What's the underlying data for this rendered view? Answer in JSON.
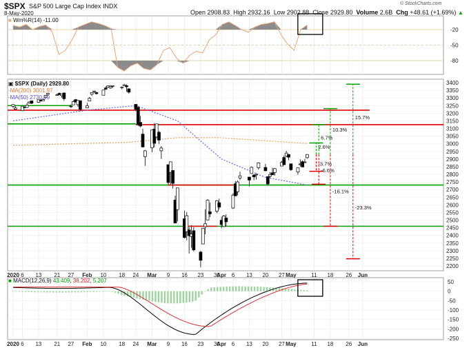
{
  "header": {
    "symbol": "$SPX",
    "name": "S&P 500 Large Cap Index",
    "exchange": "INDX",
    "date": "8-May-2020",
    "open_label": "Open",
    "open": "2908.83",
    "high_label": "High",
    "high": "2932.16",
    "low_label": "Low",
    "low": "2902.88",
    "close_label": "Close",
    "close": "2929.80",
    "volume_label": "Volume",
    "volume": "2.6B",
    "chg_label": "Chg",
    "chg": "+48.61 (+1.69%)",
    "chg_icon": "up-triangle-icon"
  },
  "watermark": "© StockCharts.com",
  "wmr_panel": {
    "legend": "Wm%R(14) -11.00",
    "axis": [
      "-20",
      "-50",
      "-80"
    ]
  },
  "price_panel": {
    "legend_symbol": "$SPX (Daily) 2929.80",
    "legend_ma200": "-MA(200) 3001.97",
    "legend_ma50": "-MA(50) 2730.19",
    "y_ticks": [
      "3400",
      "3350",
      "3300",
      "3250",
      "3200",
      "3150",
      "3100",
      "3050",
      "3000",
      "2950",
      "2900",
      "2850",
      "2800",
      "2750",
      "2700",
      "2650",
      "2600",
      "2550",
      "2500",
      "2450",
      "2400",
      "2350",
      "2300",
      "2250",
      "2200"
    ],
    "annotations": [
      "15.7%",
      "10.3%",
      "6.7%",
      "2.6%",
      "-3.7%",
      "-6.6%",
      "-16.1%",
      "-23.3%"
    ]
  },
  "macd_panel": {
    "legend_name": "MACD(12,26,9)",
    "legend_macd": "43.409",
    "legend_signal": "38.202",
    "legend_hist": "5.207",
    "y_ticks": [
      "50",
      "0",
      "-50",
      "-100",
      "-150",
      "-200",
      "-250"
    ]
  },
  "x_axis": {
    "labels": [
      "2020",
      "6",
      "13",
      "21",
      "27",
      "Feb",
      "10",
      "18",
      "24",
      "Mar",
      "9",
      "16",
      "23",
      "30",
      "Apr",
      "6",
      "13",
      "20",
      "27",
      "May",
      "11",
      "18",
      "26",
      "Jun"
    ]
  },
  "colors": {
    "up_candle": "#ffffff",
    "down_candle": "#000000",
    "support_green": "#00a000",
    "resistance_red": "#e00000",
    "ma200": "#f4a460",
    "ma50": "#7b68ee",
    "wmr_line": "#e8a878",
    "macd_line": "#000000",
    "signal_line": "#e03030",
    "histogram": "#9ed39e",
    "highlight_box": "#000000"
  },
  "chart_data": {
    "type": "candlestick",
    "title": "$SPX S&P 500 Large Cap Index INDX",
    "ylabel": "",
    "ylim": [
      2200,
      3400
    ],
    "grid": true,
    "candles": [
      {
        "d": "2020-01-02",
        "o": 3245,
        "h": 3258,
        "l": 3235,
        "c": 3257
      },
      {
        "d": "2020-01-03",
        "o": 3226,
        "h": 3246,
        "l": 3222,
        "c": 3234
      },
      {
        "d": "2020-01-06",
        "o": 3217,
        "h": 3246,
        "l": 3214,
        "c": 3246
      },
      {
        "d": "2020-01-07",
        "o": 3241,
        "h": 3245,
        "l": 3232,
        "c": 3237
      },
      {
        "d": "2020-01-08",
        "o": 3238,
        "h": 3268,
        "l": 3235,
        "c": 3253
      },
      {
        "d": "2020-01-09",
        "o": 3266,
        "h": 3276,
        "l": 3263,
        "c": 3274
      },
      {
        "d": "2020-01-10",
        "o": 3281,
        "h": 3282,
        "l": 3260,
        "c": 3265
      },
      {
        "d": "2020-01-13",
        "o": 3271,
        "h": 3288,
        "l": 3268,
        "c": 3288
      },
      {
        "d": "2020-01-14",
        "o": 3285,
        "h": 3294,
        "l": 3277,
        "c": 3283
      },
      {
        "d": "2020-01-15",
        "o": 3282,
        "h": 3298,
        "l": 3280,
        "c": 3289
      },
      {
        "d": "2020-01-16",
        "o": 3302,
        "h": 3317,
        "l": 3301,
        "c": 3317
      },
      {
        "d": "2020-01-17",
        "o": 3323,
        "h": 3330,
        "l": 3318,
        "c": 3330
      },
      {
        "d": "2020-01-21",
        "o": 3321,
        "h": 3329,
        "l": 3316,
        "c": 3321
      },
      {
        "d": "2020-01-22",
        "o": 3330,
        "h": 3337,
        "l": 3320,
        "c": 3321
      },
      {
        "d": "2020-01-23",
        "o": 3315,
        "h": 3326,
        "l": 3302,
        "c": 3326
      },
      {
        "d": "2020-01-24",
        "o": 3333,
        "h": 3334,
        "l": 3281,
        "c": 3295
      },
      {
        "d": "2020-01-27",
        "o": 3247,
        "h": 3258,
        "l": 3234,
        "c": 3243
      },
      {
        "d": "2020-01-28",
        "o": 3255,
        "h": 3285,
        "l": 3253,
        "c": 3276
      },
      {
        "d": "2020-01-29",
        "o": 3289,
        "h": 3293,
        "l": 3271,
        "c": 3273
      },
      {
        "d": "2020-01-30",
        "o": 3256,
        "h": 3285,
        "l": 3242,
        "c": 3284
      },
      {
        "d": "2020-01-31",
        "o": 3282,
        "h": 3282,
        "l": 3214,
        "c": 3226
      },
      {
        "d": "2020-02-03",
        "o": 3235,
        "h": 3268,
        "l": 3235,
        "c": 3249
      },
      {
        "d": "2020-02-04",
        "o": 3280,
        "h": 3306,
        "l": 3280,
        "c": 3298
      },
      {
        "d": "2020-02-05",
        "o": 3324,
        "h": 3337,
        "l": 3313,
        "c": 3335
      },
      {
        "d": "2020-02-06",
        "o": 3344,
        "h": 3347,
        "l": 3334,
        "c": 3345
      },
      {
        "d": "2020-02-07",
        "o": 3335,
        "h": 3341,
        "l": 3322,
        "c": 3328
      },
      {
        "d": "2020-02-10",
        "o": 3318,
        "h": 3352,
        "l": 3318,
        "c": 3352
      },
      {
        "d": "2020-02-11",
        "o": 3365,
        "h": 3375,
        "l": 3352,
        "c": 3358
      },
      {
        "d": "2020-02-12",
        "o": 3370,
        "h": 3381,
        "l": 3369,
        "c": 3379
      },
      {
        "d": "2020-02-13",
        "o": 3365,
        "h": 3385,
        "l": 3360,
        "c": 3374
      },
      {
        "d": "2020-02-14",
        "o": 3378,
        "h": 3380,
        "l": 3366,
        "c": 3380
      },
      {
        "d": "2020-02-18",
        "o": 3369,
        "h": 3375,
        "l": 3356,
        "c": 3370
      },
      {
        "d": "2020-02-19",
        "o": 3380,
        "h": 3393,
        "l": 3379,
        "c": 3386
      },
      {
        "d": "2020-02-20",
        "o": 3380,
        "h": 3389,
        "l": 3341,
        "c": 3373
      },
      {
        "d": "2020-02-21",
        "o": 3360,
        "h": 3360,
        "l": 3328,
        "c": 3338
      },
      {
        "d": "2020-02-24",
        "o": 3258,
        "h": 3259,
        "l": 3214,
        "c": 3226
      },
      {
        "d": "2020-02-25",
        "o": 3238,
        "h": 3247,
        "l": 3118,
        "c": 3128
      },
      {
        "d": "2020-02-26",
        "o": 3140,
        "h": 3182,
        "l": 3108,
        "c": 3116
      },
      {
        "d": "2020-02-27",
        "o": 3063,
        "h": 3098,
        "l": 2977,
        "c": 2979
      },
      {
        "d": "2020-02-28",
        "o": 2916,
        "h": 2959,
        "l": 2855,
        "c": 2954
      },
      {
        "d": "2020-03-02",
        "o": 2974,
        "h": 3090,
        "l": 2945,
        "c": 3090
      },
      {
        "d": "2020-03-03",
        "o": 3096,
        "h": 3136,
        "l": 2976,
        "c": 3003
      },
      {
        "d": "2020-03-04",
        "o": 3045,
        "h": 3130,
        "l": 3034,
        "c": 3130
      },
      {
        "d": "2020-03-05",
        "o": 3075,
        "h": 3083,
        "l": 2999,
        "c": 3024
      },
      {
        "d": "2020-03-06",
        "o": 2954,
        "h": 2985,
        "l": 2901,
        "c": 2972
      },
      {
        "d": "2020-03-09",
        "o": 2863,
        "h": 2863,
        "l": 2734,
        "c": 2746
      },
      {
        "d": "2020-03-10",
        "o": 2813,
        "h": 2882,
        "l": 2734,
        "c": 2882
      },
      {
        "d": "2020-03-11",
        "o": 2825,
        "h": 2825,
        "l": 2707,
        "c": 2741
      },
      {
        "d": "2020-03-12",
        "o": 2631,
        "h": 2660,
        "l": 2478,
        "c": 2481
      },
      {
        "d": "2020-03-13",
        "o": 2569,
        "h": 2711,
        "l": 2492,
        "c": 2711
      },
      {
        "d": "2020-03-16",
        "o": 2509,
        "h": 2562,
        "l": 2380,
        "c": 2386
      },
      {
        "d": "2020-03-17",
        "o": 2425,
        "h": 2553,
        "l": 2367,
        "c": 2529
      },
      {
        "d": "2020-03-18",
        "o": 2436,
        "h": 2453,
        "l": 2281,
        "c": 2398
      },
      {
        "d": "2020-03-19",
        "o": 2393,
        "h": 2466,
        "l": 2319,
        "c": 2409
      },
      {
        "d": "2020-03-20",
        "o": 2431,
        "h": 2453,
        "l": 2295,
        "c": 2305
      },
      {
        "d": "2020-03-23",
        "o": 2291,
        "h": 2300,
        "l": 2192,
        "c": 2237
      },
      {
        "d": "2020-03-24",
        "o": 2344,
        "h": 2449,
        "l": 2344,
        "c": 2447
      },
      {
        "d": "2020-03-25",
        "o": 2457,
        "h": 2571,
        "l": 2407,
        "c": 2476
      },
      {
        "d": "2020-03-26",
        "o": 2501,
        "h": 2637,
        "l": 2500,
        "c": 2630
      },
      {
        "d": "2020-03-27",
        "o": 2555,
        "h": 2615,
        "l": 2520,
        "c": 2541
      },
      {
        "d": "2020-03-30",
        "o": 2558,
        "h": 2631,
        "l": 2545,
        "c": 2627
      },
      {
        "d": "2020-03-31",
        "o": 2614,
        "h": 2641,
        "l": 2571,
        "c": 2585
      },
      {
        "d": "2020-04-01",
        "o": 2499,
        "h": 2522,
        "l": 2447,
        "c": 2471
      },
      {
        "d": "2020-04-02",
        "o": 2458,
        "h": 2533,
        "l": 2455,
        "c": 2527
      },
      {
        "d": "2020-04-03",
        "o": 2514,
        "h": 2538,
        "l": 2459,
        "c": 2489
      },
      {
        "d": "2020-04-06",
        "o": 2579,
        "h": 2676,
        "l": 2574,
        "c": 2664
      },
      {
        "d": "2020-04-07",
        "o": 2738,
        "h": 2756,
        "l": 2657,
        "c": 2659
      },
      {
        "d": "2020-04-08",
        "o": 2686,
        "h": 2760,
        "l": 2663,
        "c": 2750
      },
      {
        "d": "2020-04-09",
        "o": 2776,
        "h": 2818,
        "l": 2762,
        "c": 2790
      },
      {
        "d": "2020-04-13",
        "o": 2782,
        "h": 2782,
        "l": 2721,
        "c": 2762
      },
      {
        "d": "2020-04-14",
        "o": 2805,
        "h": 2851,
        "l": 2805,
        "c": 2846
      },
      {
        "d": "2020-04-15",
        "o": 2795,
        "h": 2801,
        "l": 2761,
        "c": 2783
      },
      {
        "d": "2020-04-16",
        "o": 2799,
        "h": 2806,
        "l": 2765,
        "c": 2800
      },
      {
        "d": "2020-04-17",
        "o": 2843,
        "h": 2879,
        "l": 2830,
        "c": 2875
      },
      {
        "d": "2020-04-20",
        "o": 2845,
        "h": 2868,
        "l": 2821,
        "c": 2823
      },
      {
        "d": "2020-04-21",
        "o": 2785,
        "h": 2785,
        "l": 2727,
        "c": 2737
      },
      {
        "d": "2020-04-22",
        "o": 2787,
        "h": 2815,
        "l": 2775,
        "c": 2799
      },
      {
        "d": "2020-04-23",
        "o": 2810,
        "h": 2844,
        "l": 2794,
        "c": 2797
      },
      {
        "d": "2020-04-24",
        "o": 2812,
        "h": 2842,
        "l": 2791,
        "c": 2837
      },
      {
        "d": "2020-04-27",
        "o": 2854,
        "h": 2888,
        "l": 2852,
        "c": 2878
      },
      {
        "d": "2020-04-28",
        "o": 2910,
        "h": 2922,
        "l": 2860,
        "c": 2863
      },
      {
        "d": "2020-04-29",
        "o": 2918,
        "h": 2954,
        "l": 2913,
        "c": 2939
      },
      {
        "d": "2020-04-30",
        "o": 2930,
        "h": 2930,
        "l": 2892,
        "c": 2912
      },
      {
        "d": "2020-05-01",
        "o": 2869,
        "h": 2869,
        "l": 2822,
        "c": 2830
      },
      {
        "d": "2020-05-04",
        "o": 2815,
        "h": 2844,
        "l": 2797,
        "c": 2842
      },
      {
        "d": "2020-05-05",
        "o": 2868,
        "h": 2898,
        "l": 2852,
        "c": 2868
      },
      {
        "d": "2020-05-06",
        "o": 2883,
        "h": 2891,
        "l": 2847,
        "c": 2848
      },
      {
        "d": "2020-05-07",
        "o": 2878,
        "h": 2901,
        "l": 2876,
        "c": 2881
      },
      {
        "d": "2020-05-08",
        "o": 2908.83,
        "h": 2932.16,
        "l": 2902.88,
        "c": 2929.8
      }
    ],
    "ma200": [
      [
        "2020-01-02",
        2990
      ],
      [
        "2020-02-21",
        3010
      ],
      [
        "2020-03-13",
        3040
      ],
      [
        "2020-03-31",
        3040
      ],
      [
        "2020-04-20",
        3020
      ],
      [
        "2020-05-08",
        3001.97
      ]
    ],
    "ma50": [
      [
        "2020-01-02",
        3150
      ],
      [
        "2020-02-03",
        3220
      ],
      [
        "2020-02-24",
        3250
      ],
      [
        "2020-03-13",
        3150
      ],
      [
        "2020-04-01",
        2900
      ],
      [
        "2020-04-20",
        2780
      ],
      [
        "2020-05-08",
        2730.19
      ]
    ],
    "horizontal_levels": [
      {
        "value": 3220,
        "color": "red"
      },
      {
        "value": 3130,
        "color": "green"
      },
      {
        "value": 3125,
        "color": "red"
      },
      {
        "value": 2730,
        "color": "green"
      },
      {
        "value": 2730,
        "color": "red"
      },
      {
        "value": 2460,
        "color": "green"
      }
    ],
    "projections": [
      {
        "pct": "15.7%",
        "target": 3390,
        "color": "green"
      },
      {
        "pct": "10.3%",
        "target": 3230,
        "color": "green"
      },
      {
        "pct": "6.7%",
        "target": 3125,
        "color": "green"
      },
      {
        "pct": "2.6%",
        "target": 3005,
        "color": "green"
      },
      {
        "pct": "-3.7%",
        "target": 2820,
        "color": "red"
      },
      {
        "pct": "-6.6%",
        "target": 2735,
        "color": "red"
      },
      {
        "pct": "-16.1%",
        "target": 2460,
        "color": "red"
      },
      {
        "pct": "-23.3%",
        "target": 2247,
        "color": "red"
      }
    ],
    "wmr": [
      -12,
      -15,
      -10,
      -20,
      -14,
      -11,
      -25,
      -68,
      -60,
      -40,
      -15,
      -10,
      -5,
      -8,
      -12,
      -18,
      -93,
      -100,
      -90,
      -85,
      -95,
      -98,
      -88,
      -60,
      -55,
      -75,
      -85,
      -70,
      -62,
      -65,
      -40,
      -30,
      -10,
      -5,
      -12,
      -20,
      -25,
      -15,
      -10,
      -8,
      -5,
      -30,
      -48,
      -60,
      -20,
      -11
    ],
    "macd": {
      "legend": "MACD(12,26,9)",
      "macd_last": 43.409,
      "signal_last": 38.202,
      "hist_last": 5.207,
      "ylim": [
        -250,
        50
      ]
    }
  }
}
